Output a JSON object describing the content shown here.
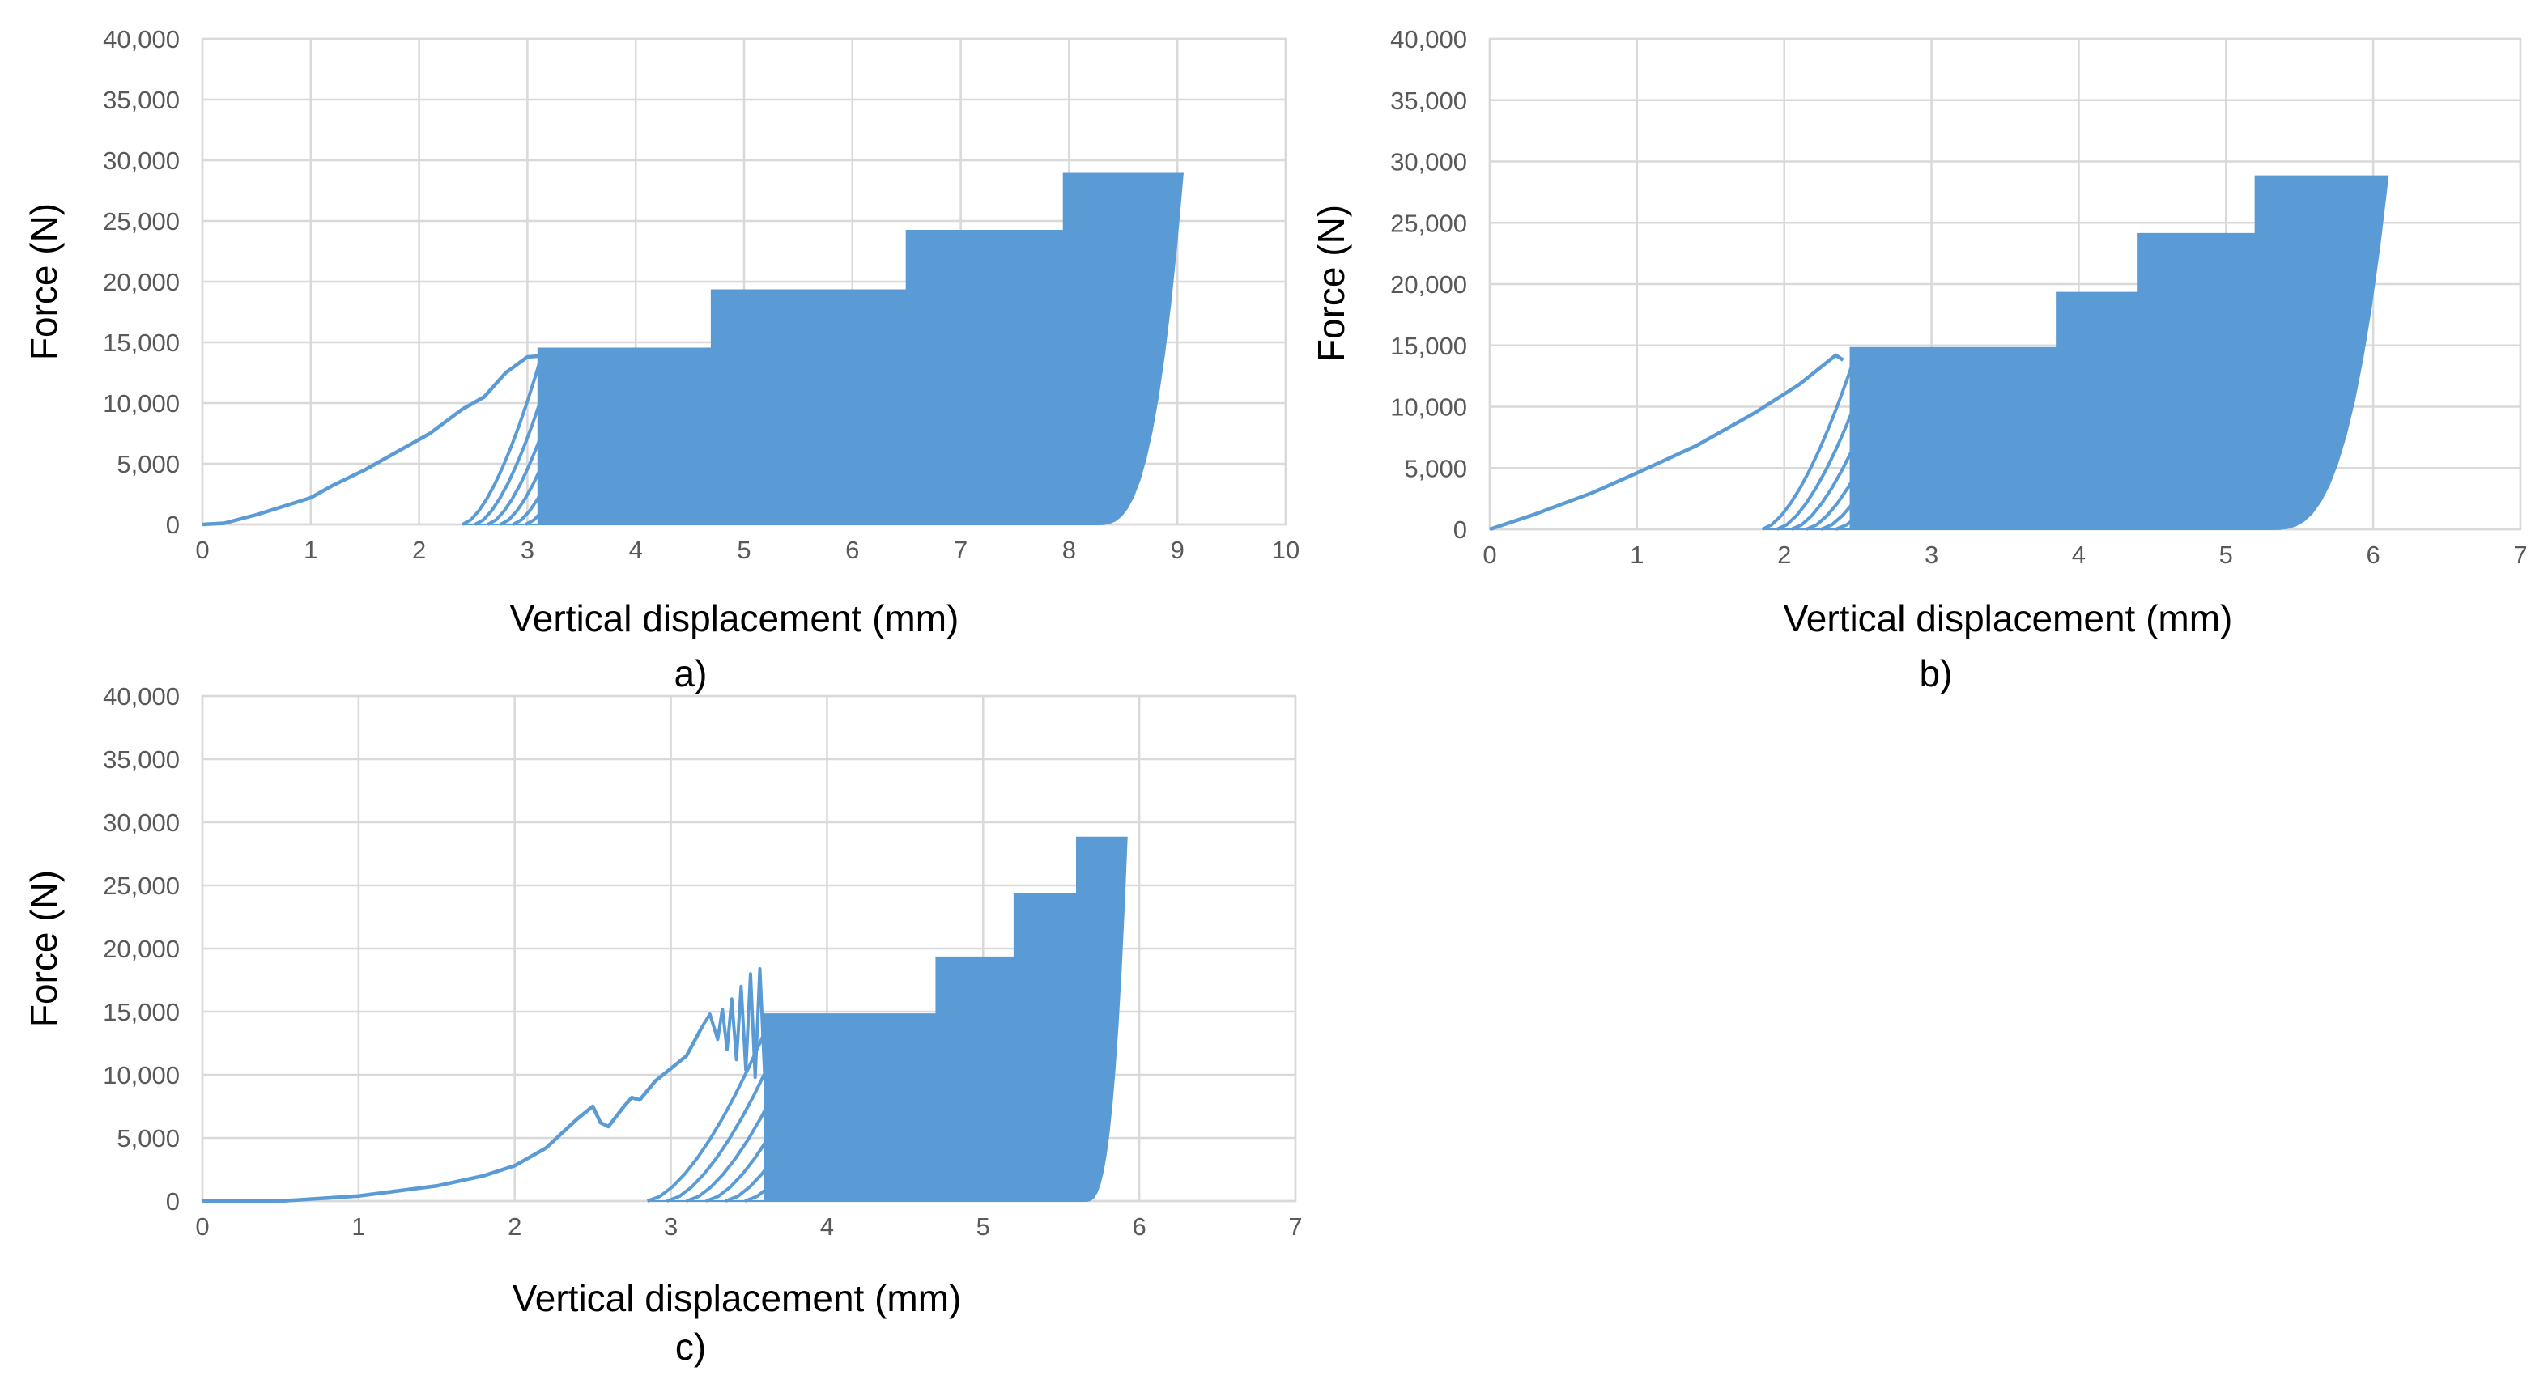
{
  "figure": {
    "panel_labels": [
      "a)",
      "b)",
      "c)"
    ]
  },
  "series_color": "#5b9bd5",
  "chart_data": [
    {
      "type": "line",
      "panel": "a)",
      "title": "",
      "xlabel": "Vertical displacement (mm)",
      "ylabel": "Force (N)",
      "xlim": [
        0,
        10
      ],
      "ylim": [
        0,
        40000
      ],
      "x_ticks": [
        0,
        1,
        2,
        3,
        4,
        5,
        6,
        7,
        8,
        9,
        10
      ],
      "y_ticks": [
        0,
        5000,
        10000,
        15000,
        20000,
        25000,
        30000,
        35000,
        40000
      ],
      "y_tick_labels": [
        "0",
        "5,000",
        "10,000",
        "15,000",
        "20,000",
        "25,000",
        "30,000",
        "35,000",
        "40,000"
      ],
      "grid": true,
      "initial_loading": {
        "x": [
          0,
          0.2,
          0.5,
          1.0,
          1.2,
          1.5,
          1.8,
          2.1,
          2.4,
          2.6,
          2.8,
          3.0,
          3.3
        ],
        "y": [
          0,
          100,
          800,
          2200,
          3200,
          4500,
          6000,
          7500,
          9500,
          10500,
          12500,
          13800,
          14000
        ]
      },
      "cyclic_loading": {
        "first_unload_x": 2.4,
        "max_x": 9.05,
        "stages": [
          {
            "x_start": 3.1,
            "x_end": 4.7,
            "peak_force": 14500
          },
          {
            "x_start": 4.7,
            "x_end": 6.5,
            "peak_force": 19300
          },
          {
            "x_start": 6.5,
            "x_end": 7.95,
            "peak_force": 24200
          },
          {
            "x_start": 7.95,
            "x_end": 9.05,
            "peak_force": 28900
          }
        ]
      }
    },
    {
      "type": "line",
      "panel": "b)",
      "title": "",
      "xlabel": "Vertical displacement (mm)",
      "ylabel": "Force (N)",
      "xlim": [
        0,
        7
      ],
      "ylim": [
        0,
        40000
      ],
      "x_ticks": [
        0,
        1,
        2,
        3,
        4,
        5,
        6,
        7
      ],
      "y_ticks": [
        0,
        5000,
        10000,
        15000,
        20000,
        25000,
        30000,
        35000,
        40000
      ],
      "y_tick_labels": [
        "0",
        "5,000",
        "10,000",
        "15,000",
        "20,000",
        "25,000",
        "30,000",
        "35,000",
        "40,000"
      ],
      "grid": true,
      "initial_loading": {
        "x": [
          0,
          0.3,
          0.7,
          1.0,
          1.4,
          1.8,
          2.1,
          2.35,
          2.4
        ],
        "y": [
          0,
          1200,
          3000,
          4600,
          6800,
          9500,
          11800,
          14200,
          13800
        ]
      },
      "cyclic_loading": {
        "first_unload_x": 1.85,
        "max_x": 6.1,
        "stages": [
          {
            "x_start": 2.45,
            "x_end": 3.85,
            "peak_force": 14800
          },
          {
            "x_start": 3.85,
            "x_end": 4.4,
            "peak_force": 19300
          },
          {
            "x_start": 4.4,
            "x_end": 5.2,
            "peak_force": 24100
          },
          {
            "x_start": 5.2,
            "x_end": 6.1,
            "peak_force": 28800
          }
        ]
      }
    },
    {
      "type": "line",
      "panel": "c)",
      "title": "",
      "xlabel": "Vertical displacement (mm)",
      "ylabel": "Force (N)",
      "xlim": [
        0,
        7
      ],
      "ylim": [
        0,
        40000
      ],
      "x_ticks": [
        0,
        1,
        2,
        3,
        4,
        5,
        6,
        7
      ],
      "y_ticks": [
        0,
        5000,
        10000,
        15000,
        20000,
        25000,
        30000,
        35000,
        40000
      ],
      "y_tick_labels": [
        "0",
        "5,000",
        "10,000",
        "15,000",
        "20,000",
        "25,000",
        "30,000",
        "35,000",
        "40,000"
      ],
      "grid": true,
      "initial_loading": {
        "x": [
          0,
          0.5,
          1.0,
          1.5,
          1.8,
          2.0,
          2.2,
          2.4,
          2.5,
          2.55,
          2.6,
          2.7,
          2.75,
          2.8,
          2.9,
          3.0,
          3.1,
          3.2
        ],
        "y": [
          0,
          0,
          400,
          1200,
          2000,
          2800,
          4200,
          6500,
          7500,
          6200,
          5900,
          7500,
          8200,
          8000,
          9500,
          10500,
          11500,
          13800
        ]
      },
      "oscillation": {
        "x": [
          3.2,
          3.25,
          3.3,
          3.33,
          3.36,
          3.39,
          3.42,
          3.45,
          3.48,
          3.51,
          3.54,
          3.57,
          3.6,
          3.62
        ],
        "y": [
          13800,
          14800,
          12800,
          15200,
          12000,
          16000,
          11200,
          17000,
          10400,
          18000,
          9800,
          18400,
          10200,
          11000
        ]
      },
      "cyclic_loading": {
        "first_unload_x": 2.85,
        "max_x": 5.92,
        "stages": [
          {
            "x_start": 3.6,
            "x_end": 4.7,
            "peak_force": 14800
          },
          {
            "x_start": 4.7,
            "x_end": 5.2,
            "peak_force": 19300
          },
          {
            "x_start": 5.2,
            "x_end": 5.6,
            "peak_force": 24300
          },
          {
            "x_start": 5.6,
            "x_end": 5.92,
            "peak_force": 28800
          }
        ]
      }
    }
  ]
}
